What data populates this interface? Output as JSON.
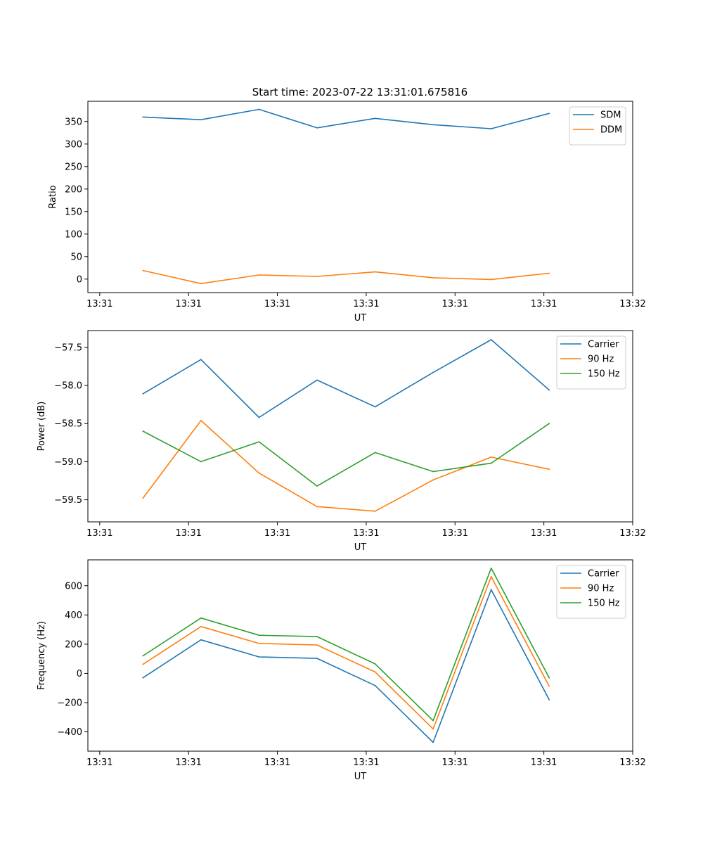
{
  "title": "Start time: 2023-07-22 13:31:01.675816",
  "colors": {
    "blue": "#1f77b4",
    "orange": "#ff7f0e",
    "green": "#2ca02c"
  },
  "chart_data": [
    {
      "type": "line",
      "title": "Start time: 2023-07-22 13:31:01.675816",
      "xlabel": "UT",
      "ylabel": "Ratio",
      "xlim": [
        0,
        9.2
      ],
      "ylim": [
        -30,
        395
      ],
      "yticks": [
        0,
        50,
        100,
        150,
        200,
        250,
        300,
        350
      ],
      "ytick_labels": [
        "0",
        "50",
        "100",
        "150",
        "200",
        "250",
        "300",
        "350"
      ],
      "xticks": [
        0.2,
        1.7,
        3.2,
        4.7,
        6.2,
        7.7,
        9.2
      ],
      "xtick_labels": [
        "13:31",
        "13:31",
        "13:31",
        "13:31",
        "13:31",
        "13:31",
        "13:32"
      ],
      "x": [
        0.93,
        1.91,
        2.89,
        3.87,
        4.85,
        5.83,
        6.81,
        7.79
      ],
      "legend": "top-right",
      "series": [
        {
          "name": "SDM",
          "color": "#1f77b4",
          "values": [
            360,
            354,
            377,
            336,
            357,
            343,
            334,
            368
          ]
        },
        {
          "name": "DDM",
          "color": "#ff7f0e",
          "values": [
            19,
            -10,
            9,
            6,
            16,
            3,
            -1,
            13
          ]
        }
      ]
    },
    {
      "type": "line",
      "xlabel": "UT",
      "ylabel": "Power (dB)",
      "xlim": [
        0,
        9.2
      ],
      "ylim": [
        -59.79,
        -57.28
      ],
      "yticks": [
        -59.5,
        -59.0,
        -58.5,
        -58.0,
        -57.5
      ],
      "ytick_labels": [
        "−59.5",
        "−59.0",
        "−58.5",
        "−58.0",
        "−57.5"
      ],
      "xticks": [
        0.2,
        1.7,
        3.2,
        4.7,
        6.2,
        7.7,
        9.2
      ],
      "xtick_labels": [
        "13:31",
        "13:31",
        "13:31",
        "13:31",
        "13:31",
        "13:31",
        "13:32"
      ],
      "x": [
        0.93,
        1.91,
        2.89,
        3.87,
        4.85,
        5.83,
        6.81,
        7.79
      ],
      "legend": "top-right",
      "series": [
        {
          "name": "Carrier",
          "color": "#1f77b4",
          "values": [
            -58.11,
            -57.66,
            -58.42,
            -57.93,
            -58.28,
            -57.83,
            -57.4,
            -58.06
          ]
        },
        {
          "name": "90 Hz",
          "color": "#ff7f0e",
          "values": [
            -59.48,
            -58.46,
            -59.15,
            -59.59,
            -59.65,
            -59.24,
            -58.94,
            -59.1
          ]
        },
        {
          "name": "150 Hz",
          "color": "#2ca02c",
          "values": [
            -58.6,
            -59.0,
            -58.74,
            -59.32,
            -58.88,
            -59.13,
            -59.02,
            -58.5
          ]
        }
      ]
    },
    {
      "type": "line",
      "xlabel": "UT",
      "ylabel": "Frequency (Hz)",
      "xlim": [
        0,
        9.2
      ],
      "ylim": [
        -532,
        777
      ],
      "yticks": [
        -400,
        -200,
        0,
        200,
        400,
        600
      ],
      "ytick_labels": [
        "−400",
        "−200",
        "0",
        "200",
        "400",
        "600"
      ],
      "xticks": [
        0.2,
        1.7,
        3.2,
        4.7,
        6.2,
        7.7,
        9.2
      ],
      "xtick_labels": [
        "13:31",
        "13:31",
        "13:31",
        "13:31",
        "13:31",
        "13:31",
        "13:32"
      ],
      "x": [
        0.93,
        1.91,
        2.89,
        3.87,
        4.85,
        5.83,
        6.81,
        7.79
      ],
      "legend": "top-right",
      "series": [
        {
          "name": "Carrier",
          "color": "#1f77b4",
          "values": [
            -30,
            230,
            113,
            103,
            -83,
            -472,
            573,
            -180
          ]
        },
        {
          "name": "90 Hz",
          "color": "#ff7f0e",
          "values": [
            62,
            321,
            205,
            194,
            10,
            -380,
            662,
            -88
          ]
        },
        {
          "name": "150 Hz",
          "color": "#2ca02c",
          "values": [
            120,
            379,
            261,
            252,
            65,
            -323,
            720,
            -30
          ]
        }
      ]
    }
  ]
}
